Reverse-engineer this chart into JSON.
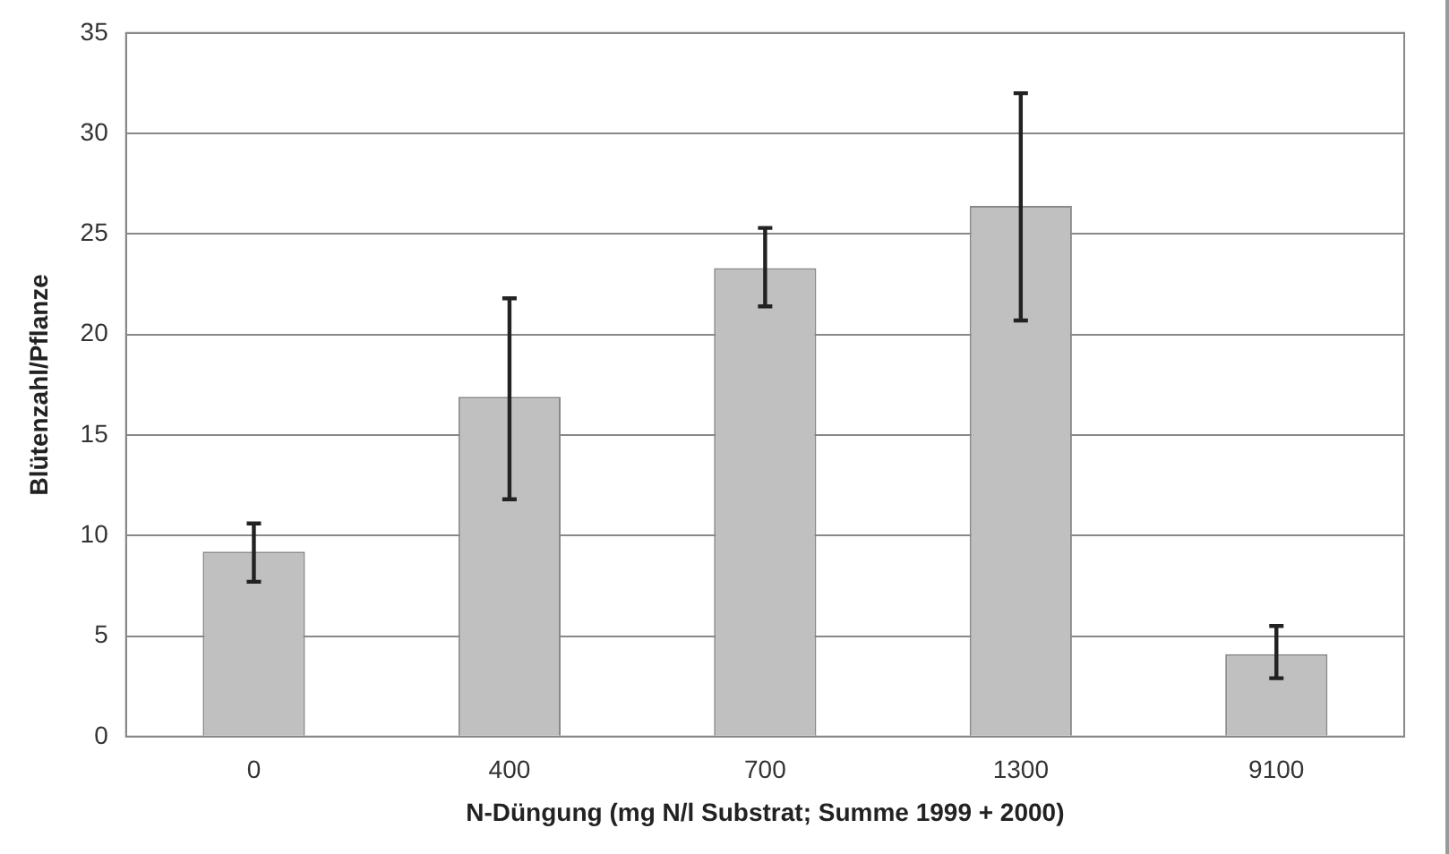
{
  "chart_data": {
    "type": "bar",
    "xlabel": "N-Düngung (mg N/l Substrat; Summe 1999 + 2000)",
    "ylabel": "Blütenzahl/Pflanze",
    "categories": [
      "0",
      "400",
      "700",
      "1300",
      "9100"
    ],
    "values": [
      9.2,
      16.9,
      23.3,
      26.4,
      4.1
    ],
    "errors": [
      [
        7.7,
        10.6
      ],
      [
        11.8,
        21.8
      ],
      [
        21.4,
        25.3
      ],
      [
        20.7,
        32.0
      ],
      [
        2.9,
        5.5
      ]
    ],
    "color": "#c0c0c0",
    "ylim": [
      0,
      35
    ],
    "yticks": [
      0,
      5,
      10,
      15,
      20,
      25,
      30,
      35
    ],
    "grid": "y",
    "legend": false
  }
}
